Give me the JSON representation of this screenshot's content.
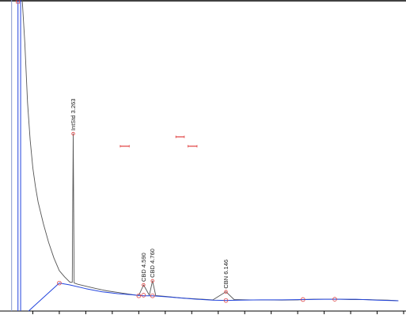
{
  "chart_data": {
    "type": "line",
    "title": "",
    "xlabel": "",
    "ylabel": "",
    "xlim": [
      2.0,
      9.5
    ],
    "ylim": [
      0,
      100
    ],
    "grid": false,
    "legend": "none",
    "colors": {
      "trace": "#555555",
      "baseline": "#2244dd",
      "marker": "#e04040",
      "axis": "#000000"
    },
    "peaks": [
      {
        "label": "IntStd 3.263",
        "rt": 3.263,
        "height": 57.0
      },
      {
        "label": "CBD 4.590",
        "rt": 4.59,
        "height": 8.4
      },
      {
        "label": "CBD 4.760",
        "rt": 4.76,
        "height": 9.7
      },
      {
        "label": "CBN 6.146",
        "rt": 6.146,
        "height": 6.2
      }
    ],
    "trace": {
      "x": [
        2.3,
        2.35,
        2.4,
        2.45,
        2.5,
        2.55,
        2.6,
        2.7,
        2.8,
        2.9,
        3.0,
        3.1,
        3.2,
        3.245,
        3.263,
        3.28,
        3.35,
        3.5,
        3.7,
        3.9,
        4.1,
        4.3,
        4.5,
        4.59,
        4.7,
        4.76,
        4.82,
        5.0,
        5.3,
        5.6,
        5.9,
        6.146,
        6.3,
        6.6,
        6.9,
        7.2,
        7.5,
        7.6,
        7.8,
        8.1,
        8.3,
        8.5,
        8.8,
        9.0,
        9.2,
        9.4
      ],
      "y": [
        100,
        86,
        67,
        55,
        46,
        40,
        35,
        28,
        22,
        17,
        13,
        11,
        9.3,
        9.2,
        57.0,
        9.0,
        8.6,
        8.0,
        7.2,
        6.5,
        6.0,
        5.5,
        5.0,
        8.4,
        5.1,
        9.7,
        5.0,
        4.7,
        4.2,
        3.9,
        3.6,
        6.2,
        3.7,
        3.6,
        3.6,
        3.5,
        3.6,
        3.7,
        3.8,
        3.8,
        3.8,
        3.7,
        3.7,
        3.6,
        3.5,
        3.3
      ]
    },
    "baseline": {
      "x": [
        2.42,
        3.0,
        3.2,
        3.5,
        3.8,
        4.1,
        4.4,
        4.59,
        4.76,
        5.0,
        5.3,
        5.6,
        5.9,
        6.146,
        6.4,
        6.8,
        7.2,
        7.6,
        8.0,
        8.2,
        8.6,
        9.0,
        9.4
      ],
      "y": [
        0.0,
        9.0,
        8.4,
        7.2,
        6.2,
        5.6,
        5.2,
        4.9,
        4.9,
        4.6,
        4.2,
        3.8,
        3.5,
        3.4,
        3.5,
        3.6,
        3.6,
        3.7,
        3.8,
        3.8,
        3.8,
        3.5,
        3.3
      ]
    },
    "markers": [
      {
        "x": 3.0,
        "y": 9.0
      },
      {
        "x": 4.5,
        "y": 4.9
      },
      {
        "x": 4.59,
        "y": 5.1
      },
      {
        "x": 4.76,
        "y": 4.9
      },
      {
        "x": 6.146,
        "y": 3.4
      },
      {
        "x": 7.6,
        "y": 3.7
      },
      {
        "x": 8.2,
        "y": 3.8
      }
    ],
    "bands": [
      {
        "x0": 4.15,
        "x1": 4.32,
        "y": 53.0
      },
      {
        "x0": 5.2,
        "x1": 5.36,
        "y": 56.0
      },
      {
        "x0": 5.43,
        "x1": 5.6,
        "y": 53.0
      }
    ],
    "solvent_lines": [
      2.1,
      2.22,
      2.27
    ]
  }
}
